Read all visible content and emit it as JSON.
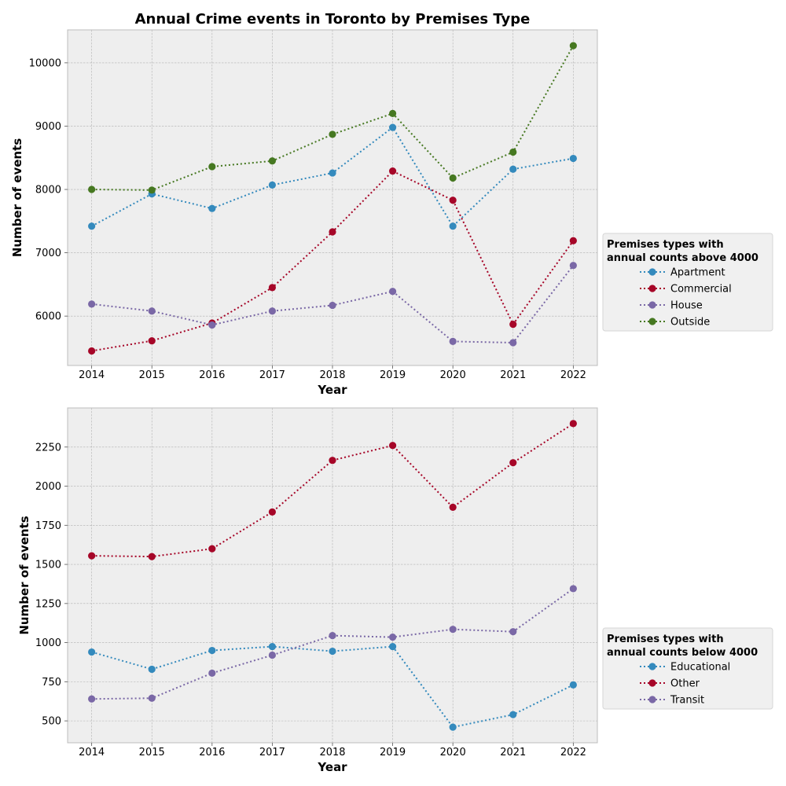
{
  "chart_data": [
    {
      "type": "line",
      "title": "Annual Crime events in Toronto by Premises Type",
      "xlabel": "Year",
      "ylabel": "Number of events",
      "x": [
        2014,
        2015,
        2016,
        2017,
        2018,
        2019,
        2020,
        2021,
        2022
      ],
      "xlim": [
        2013.6,
        2022.4
      ],
      "ylim": [
        5220,
        10520
      ],
      "yticks": [
        6000,
        7000,
        8000,
        9000,
        10000
      ],
      "grid": true,
      "legend_title": "Premises types with\nannual counts above 4000",
      "legend_placement": "right-center-outside",
      "series": [
        {
          "name": "Apartment",
          "color": "#348ABD",
          "values": [
            7420,
            7930,
            7700,
            8070,
            8260,
            8980,
            7420,
            8320,
            8490
          ]
        },
        {
          "name": "Commercial",
          "color": "#A60628",
          "values": [
            5450,
            5610,
            5890,
            6450,
            7330,
            8290,
            7830,
            5870,
            7190
          ]
        },
        {
          "name": "House",
          "color": "#7A68A6",
          "values": [
            6190,
            6080,
            5860,
            6080,
            6170,
            6390,
            5600,
            5580,
            6800
          ]
        },
        {
          "name": "Outside",
          "color": "#467821",
          "values": [
            8000,
            7990,
            8360,
            8450,
            8870,
            9200,
            8180,
            8590,
            10270
          ]
        }
      ]
    },
    {
      "type": "line",
      "title": "",
      "xlabel": "Year",
      "ylabel": "Number of events",
      "x": [
        2014,
        2015,
        2016,
        2017,
        2018,
        2019,
        2020,
        2021,
        2022
      ],
      "xlim": [
        2013.6,
        2022.4
      ],
      "ylim": [
        360,
        2500
      ],
      "yticks": [
        500,
        750,
        1000,
        1250,
        1500,
        1750,
        2000,
        2250
      ],
      "grid": true,
      "legend_title": "Premises types with\nannual counts below 4000",
      "legend_placement": "right-bottom-outside",
      "series": [
        {
          "name": "Educational",
          "color": "#348ABD",
          "values": [
            940,
            830,
            950,
            975,
            945,
            975,
            460,
            540,
            730
          ]
        },
        {
          "name": "Other",
          "color": "#A60628",
          "values": [
            1555,
            1550,
            1600,
            1835,
            2165,
            2260,
            1865,
            2150,
            2400
          ]
        },
        {
          "name": "Transit",
          "color": "#7A68A6",
          "values": [
            640,
            645,
            805,
            920,
            1045,
            1035,
            1085,
            1070,
            1345
          ]
        }
      ]
    }
  ]
}
